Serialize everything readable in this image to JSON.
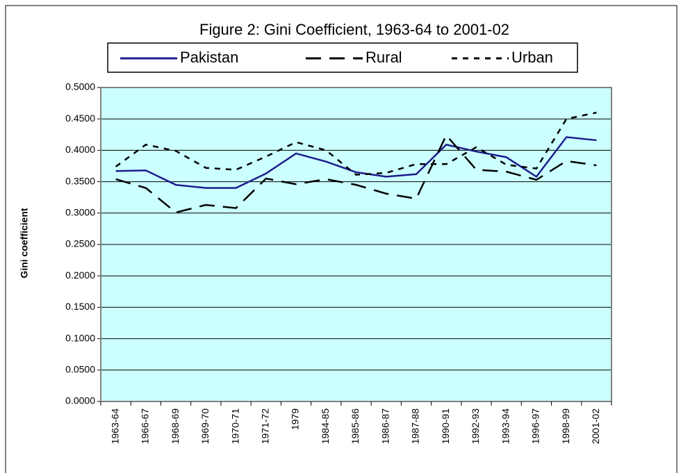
{
  "chart_data": {
    "type": "line",
    "title": "Figure 2: Gini Coefficient, 1963-64 to 2001-02",
    "y_label": "Gini coefficient",
    "categories": [
      "1963-64",
      "1966-67",
      "1968-69",
      "1969-70",
      "1970-71",
      "1971-72",
      "1979",
      "1984-85",
      "1985-86",
      "1986-87",
      "1987-88",
      "1990-91",
      "1992-93",
      "1993-94",
      "1996-97",
      "1998-99",
      "2001-02"
    ],
    "series": [
      {
        "name": "Pakistan",
        "color": "#1c1c8c",
        "line_style": "solid",
        "values": [
          0.367,
          0.368,
          0.345,
          0.34,
          0.34,
          0.363,
          0.395,
          0.382,
          0.365,
          0.358,
          0.362,
          0.409,
          0.398,
          0.389,
          0.358,
          0.421,
          0.416
        ]
      },
      {
        "name": "Rural",
        "color": "#000000",
        "line_style": "long-dash",
        "values": [
          0.354,
          0.34,
          0.301,
          0.313,
          0.308,
          0.355,
          0.346,
          0.354,
          0.345,
          0.331,
          0.323,
          0.424,
          0.369,
          0.366,
          0.353,
          0.383,
          0.376
        ]
      },
      {
        "name": "Urban",
        "color": "#000000",
        "line_style": "short-dash",
        "values": [
          0.374,
          0.409,
          0.399,
          0.372,
          0.369,
          0.39,
          0.413,
          0.4,
          0.361,
          0.364,
          0.378,
          0.378,
          0.405,
          0.377,
          0.371,
          0.45,
          0.46
        ]
      }
    ],
    "ylim": [
      0,
      0.5
    ],
    "yticks": [
      {
        "value": 0,
        "label": "0.0000"
      },
      {
        "value": 0.05,
        "label": "0.0500"
      },
      {
        "value": 0.1,
        "label": "0.1000"
      },
      {
        "value": 0.15,
        "label": "0.1500"
      },
      {
        "value": 0.2,
        "label": "0.2000"
      },
      {
        "value": 0.25,
        "label": "0.2500"
      },
      {
        "value": 0.3,
        "label": "0.3000"
      },
      {
        "value": 0.35,
        "label": "0.3500"
      },
      {
        "value": 0.4,
        "label": "0.4000"
      },
      {
        "value": 0.45,
        "label": "0.4500"
      },
      {
        "value": 0.5,
        "label": "0.5000"
      }
    ],
    "grid": true,
    "plot_background": "#ccffff",
    "legend": "top"
  }
}
